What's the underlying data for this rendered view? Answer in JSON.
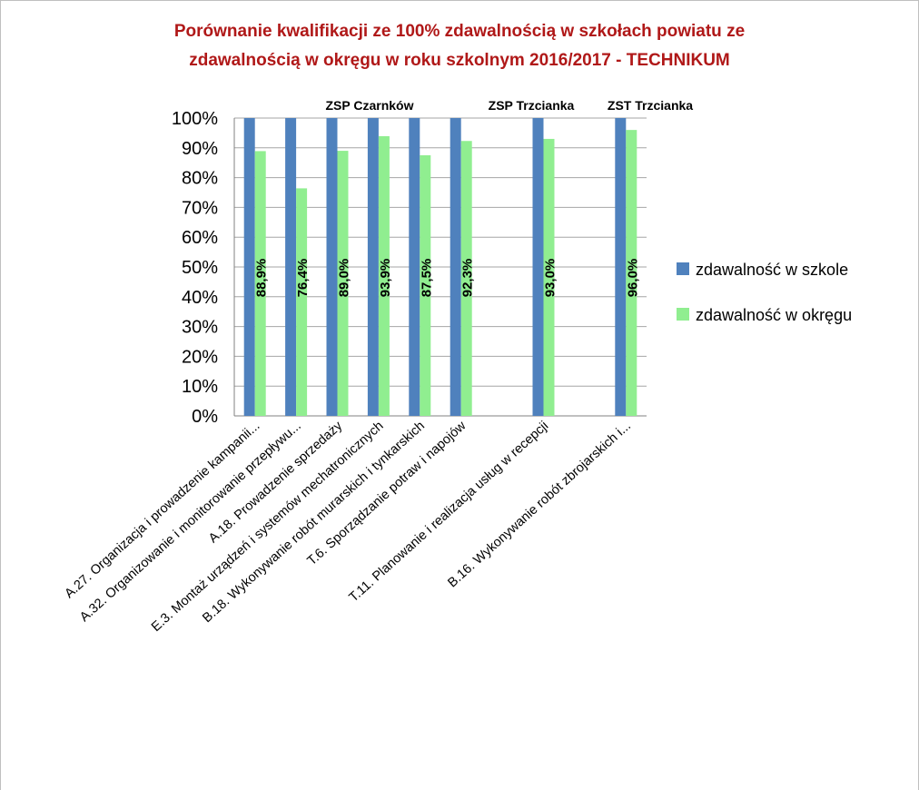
{
  "chart_data": {
    "type": "bar",
    "title_lines": [
      "Porównanie kwalifikacji ze 100% zdawalnością w szkołach powiatu ze",
      "zdawalnością w okręgu w roku szkolnym 2016/2017 - TECHNIKUM"
    ],
    "categories": [
      "A.27. Organizacja i prowadzenie kampanii...",
      "A.32. Organizowanie i monitorowanie przepływu...",
      "A.18. Prowadzenie sprzedaży",
      "E.3. Montaż urządzeń i systemów mechatronicznych",
      "B.18. Wykonywanie robót murarskich i tynkarskich",
      "T.6. Sporządzanie potraw i napojów",
      "",
      "T.11. Planowanie i realizacja usług w recepcji",
      "",
      "B.16. Wykonywanie robót zbrojarskich i..."
    ],
    "series": [
      {
        "name": "zdawalność w szkole",
        "color": "#4f81bd",
        "values": [
          1.0,
          1.0,
          1.0,
          1.0,
          1.0,
          1.0,
          null,
          1.0,
          null,
          1.0
        ]
      },
      {
        "name": "zdawalność w okręgu",
        "color": "#90ee90",
        "values": [
          0.889,
          0.764,
          0.89,
          0.939,
          0.875,
          0.923,
          null,
          0.93,
          null,
          0.96
        ]
      }
    ],
    "data_labels": [
      "88,9%",
      "76,4%",
      "89,0%",
      "93,9%",
      "87,5%",
      "92,3%",
      "",
      "93,0%",
      "",
      "96,0%"
    ],
    "group_labels": [
      "ZSP Czarnków",
      "ZSP Trzcianka",
      "ZST Trzcianka"
    ],
    "y_ticks": [
      "0%",
      "10%",
      "20%",
      "30%",
      "40%",
      "50%",
      "60%",
      "70%",
      "80%",
      "90%",
      "100%"
    ],
    "ylim": [
      0,
      1
    ],
    "grid": true,
    "legend_position": "right"
  }
}
